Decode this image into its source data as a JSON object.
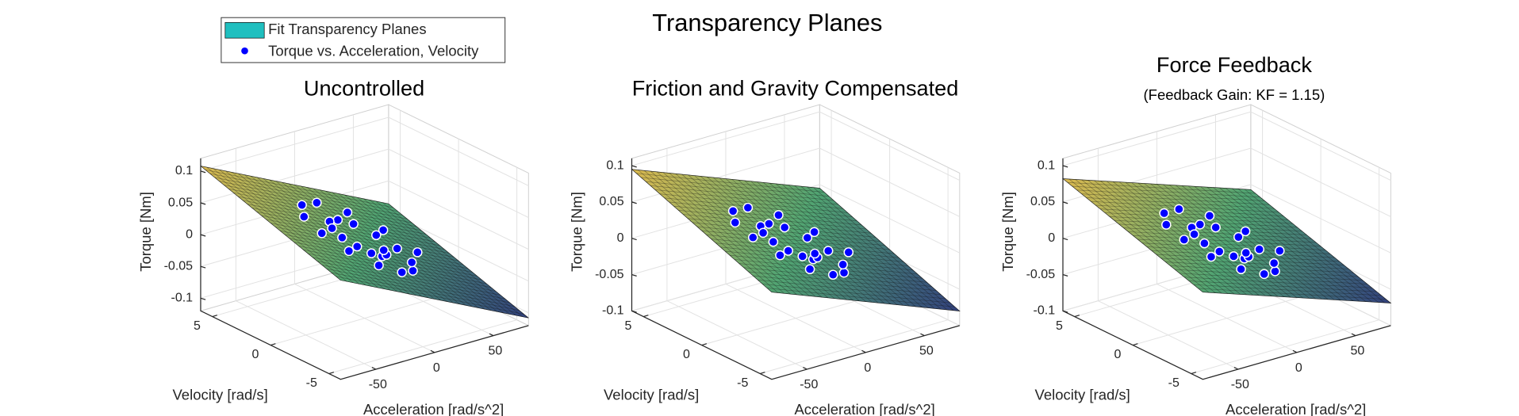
{
  "title": "Transparency Planes",
  "chart_data": [
    {
      "type": "surface-scatter3d",
      "title": "Uncontrolled",
      "xlabel": "Acceleration [rad/s^2]",
      "ylabel": "Velocity [rad/s]",
      "zlabel": "Torque [Nm]",
      "xlim": [
        -80,
        80
      ],
      "ylim": [
        -6,
        6
      ],
      "zlim": [
        -0.12,
        0.12
      ],
      "xticks": [
        -50,
        0,
        50
      ],
      "yticks": [
        -5,
        0,
        5
      ],
      "zticks": [
        -0.1,
        -0.05,
        0,
        0.05,
        0.1
      ],
      "grid": true,
      "legend": "upper left",
      "surface": {
        "name": "Fit Transparency Planes",
        "color": "#1fbfbf",
        "colormap": [
          "#d8b23c",
          "#3f9a63",
          "#1c2c6e"
        ],
        "x": [
          -80,
          80
        ],
        "y": [
          -6,
          6
        ],
        "z": [
          [
            0.036,
            -0.108
          ],
          [
            0.108,
            -0.036
          ]
        ]
      },
      "scatter": {
        "name": "Torque vs. Acceleration, Velocity",
        "color": "#0000ff",
        "edgecolor": "#ffffff",
        "x": [
          45,
          37.7,
          21.1,
          0,
          -19.6,
          -32.7,
          -36.4,
          -30.2,
          -16.7,
          0,
          15.3,
          25.3,
          27.7,
          22.8,
          12.4,
          0,
          -11,
          -17.8,
          -19.1,
          -15.3,
          -8.1,
          0,
          6.7,
          10.3
        ],
        "y": [
          0,
          2.2,
          3.6,
          4.1,
          3.4,
          1.9,
          0,
          -1.7,
          -2.9,
          -3.2,
          -2.6,
          -1.5,
          0,
          1.3,
          2.2,
          2.3,
          1.9,
          1,
          0,
          -0.9,
          -1.4,
          -1.5,
          -1.2,
          -0.6
        ],
        "z": [
          -0.04,
          -0.021,
          0.003,
          0.025,
          0.038,
          0.04,
          0.033,
          0.017,
          -0.002,
          -0.019,
          -0.03,
          -0.032,
          -0.025,
          -0.013,
          0.002,
          0.014,
          0.021,
          0.022,
          0.017,
          0.009,
          -0.001,
          -0.009,
          -0.013,
          -0.013
        ]
      }
    },
    {
      "type": "surface-scatter3d",
      "title": "Friction and Gravity Compensated",
      "xlabel": "Acceleration [rad/s^2]",
      "ylabel": "Velocity [rad/s]",
      "zlabel": "Torque [Nm]",
      "xlim": [
        -80,
        80
      ],
      "ylim": [
        -6,
        6
      ],
      "zlim": [
        -0.1,
        0.11
      ],
      "xticks": [
        -50,
        0,
        50
      ],
      "yticks": [
        -5,
        0,
        5
      ],
      "zticks": [
        -0.1,
        -0.05,
        0,
        0.05,
        0.1
      ],
      "grid": true,
      "surface": {
        "colormap": [
          "#d8b23c",
          "#3f9a63",
          "#1c2c6e"
        ],
        "x": [
          -80,
          80
        ],
        "y": [
          -6,
          6
        ],
        "z": [
          [
            0.02,
            -0.08
          ],
          [
            0.095,
            -0.005
          ]
        ]
      },
      "scatter": {
        "color": "#0000ff",
        "edgecolor": "#ffffff",
        "x": [
          45,
          37.7,
          21.1,
          0,
          -19.6,
          -32.7,
          -36.4,
          -30.2,
          -16.7,
          0,
          15.3,
          25.3,
          27.7,
          22.8,
          12.4,
          0,
          -11,
          -17.8,
          -19.1,
          -15.3,
          -8.1,
          0,
          6.7,
          10.3
        ],
        "y": [
          0,
          2.2,
          3.6,
          4.1,
          3.4,
          1.9,
          0,
          -1.7,
          -2.9,
          -3.2,
          -2.6,
          -1.5,
          0,
          1.3,
          2.2,
          2.3,
          1.9,
          1,
          0,
          -0.9,
          -1.4,
          -1.5,
          -1.2,
          -0.6
        ],
        "z": [
          -0.03,
          -0.016,
          0.004,
          0.02,
          0.03,
          0.032,
          0.028,
          0.014,
          -0.002,
          -0.015,
          -0.024,
          -0.026,
          -0.02,
          -0.01,
          0.002,
          0.012,
          0.017,
          0.018,
          0.014,
          0.007,
          0,
          -0.007,
          -0.01,
          -0.011
        ]
      }
    },
    {
      "type": "surface-scatter3d",
      "title": "Force Feedback",
      "subtitle": "(Feedback Gain: KF = 1.15)",
      "xlabel": "Acceleration [rad/s^2]",
      "ylabel": "Velocity [rad/s]",
      "zlabel": "Torque [Nm]",
      "xlim": [
        -80,
        80
      ],
      "ylim": [
        -6,
        6
      ],
      "zlim": [
        -0.1,
        0.11
      ],
      "xticks": [
        -50,
        0,
        50
      ],
      "yticks": [
        -5,
        0,
        5
      ],
      "zticks": [
        -0.1,
        -0.05,
        0,
        0.05,
        0.1
      ],
      "grid": true,
      "surface": {
        "colormap": [
          "#d8b23c",
          "#3f9a63",
          "#1c2c6e"
        ],
        "x": [
          -80,
          80
        ],
        "y": [
          -6,
          6
        ],
        "z": [
          [
            0.02,
            -0.069
          ],
          [
            0.082,
            -0.007
          ]
        ]
      },
      "scatter": {
        "color": "#0000ff",
        "edgecolor": "#ffffff",
        "x": [
          45,
          37.7,
          21.1,
          0,
          -19.6,
          -32.7,
          -36.4,
          -30.2,
          -16.7,
          0,
          15.3,
          25.3,
          27.7,
          22.8,
          12.4,
          0,
          -11,
          -17.8,
          -19.1,
          -15.3,
          -8.1,
          0,
          6.7,
          10.3
        ],
        "y": [
          0,
          2.2,
          3.6,
          4.1,
          3.4,
          1.9,
          0,
          -1.7,
          -2.9,
          -3.2,
          -2.6,
          -1.5,
          0,
          1.3,
          2.2,
          2.3,
          1.9,
          1,
          0,
          -0.9,
          -1.4,
          -1.5,
          -1.2,
          -0.6
        ],
        "z": [
          -0.028,
          -0.015,
          0.003,
          0.018,
          0.027,
          0.029,
          0.025,
          0.012,
          -0.002,
          -0.014,
          -0.022,
          -0.024,
          -0.018,
          -0.009,
          0.002,
          0.011,
          0.015,
          0.016,
          0.012,
          0.006,
          0,
          -0.006,
          -0.009,
          -0.01
        ]
      }
    }
  ]
}
